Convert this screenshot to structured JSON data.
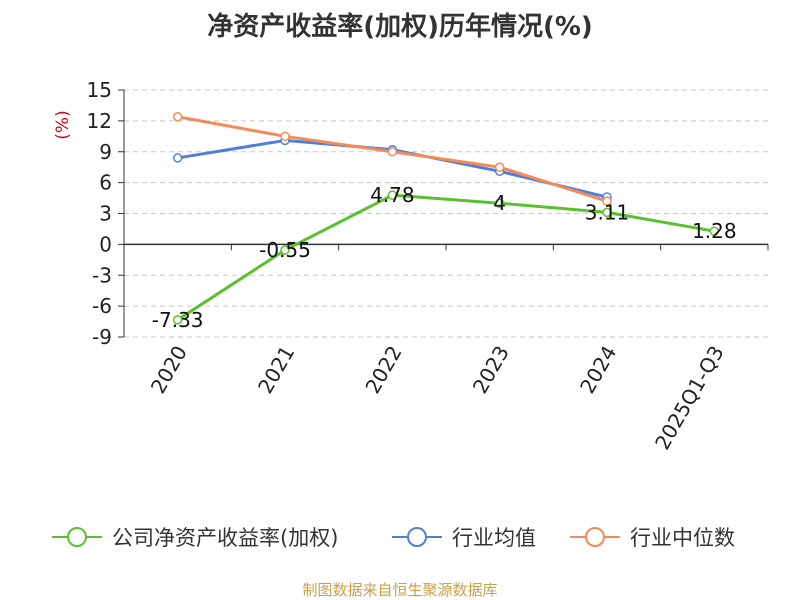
{
  "chart_data": {
    "type": "line",
    "title": "净资产收益率(加权)历年情况(%)",
    "ylabel": "(%)",
    "categories": [
      "2020",
      "2021",
      "2022",
      "2023",
      "2024",
      "2025Q1-Q3"
    ],
    "ylim": [
      -9,
      15
    ],
    "yticks": [
      15,
      12,
      9,
      6,
      3,
      0,
      -3,
      -6,
      -9
    ],
    "grid": "horizontal-dashed",
    "legend_position": "bottom",
    "series": [
      {
        "name": "公司净资产收益率(加权)",
        "color": "#5cc02e",
        "values": [
          -7.33,
          -0.55,
          4.78,
          4,
          3.11,
          1.28
        ],
        "labels": [
          "-7.33",
          "-0.55",
          "4.78",
          "4",
          "3.11",
          "1.28"
        ]
      },
      {
        "name": "行业均值",
        "color": "#4f7fdb",
        "values": [
          8.4,
          10.1,
          9.2,
          7.1,
          4.6,
          null
        ]
      },
      {
        "name": "行业中位数",
        "color": "#f38a58",
        "values": [
          12.4,
          10.5,
          9.0,
          7.5,
          4.2,
          null
        ]
      }
    ]
  },
  "unit_color": "#d0021b",
  "source": "制图数据来自恒生聚源数据库"
}
